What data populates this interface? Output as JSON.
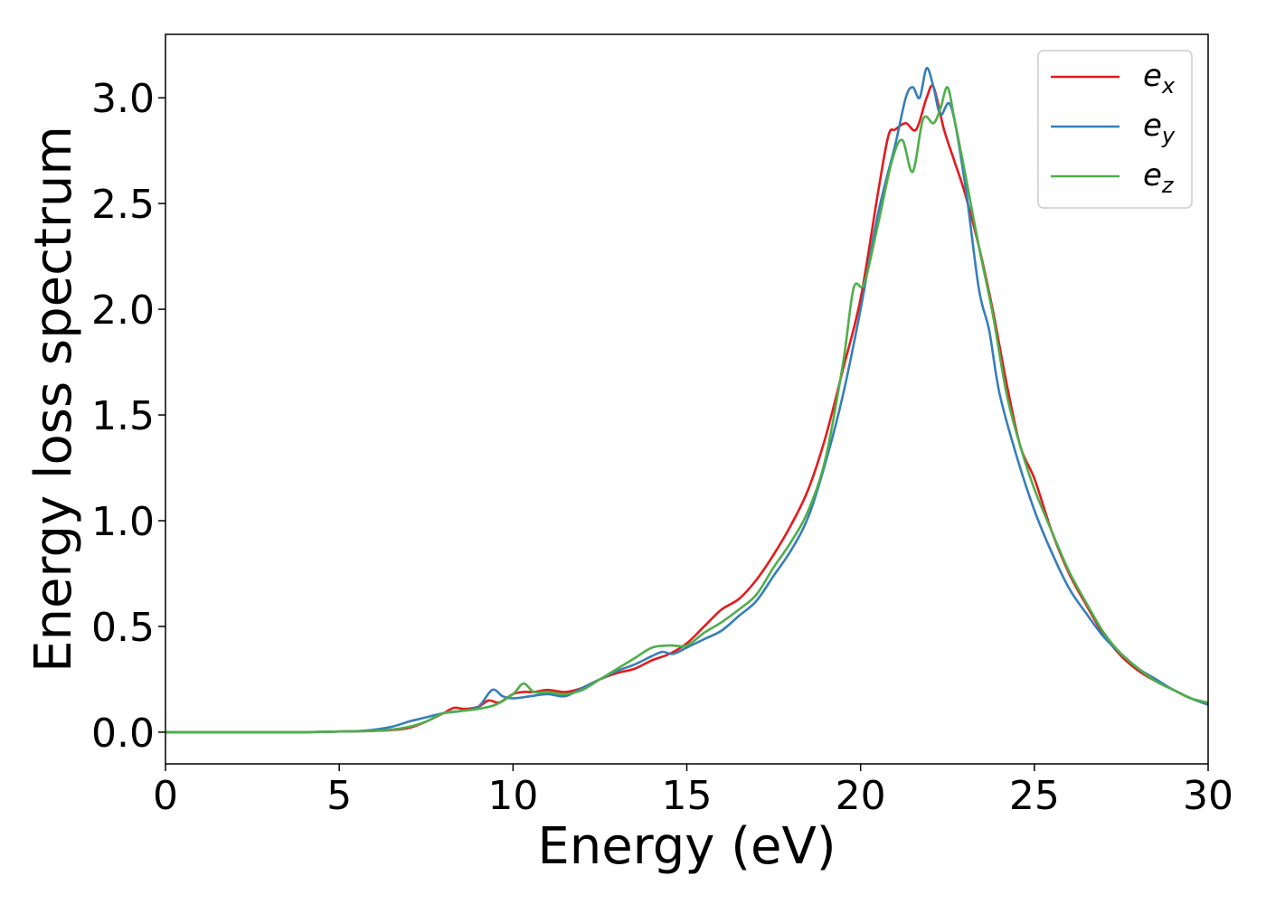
{
  "chart_data": {
    "type": "line",
    "title": "",
    "xlabel": "Energy (eV)",
    "ylabel": "Energy loss spectrum",
    "xlim": [
      0,
      30
    ],
    "ylim": [
      -0.15,
      3.3
    ],
    "xticks": [
      0,
      5,
      10,
      15,
      20,
      25,
      30
    ],
    "xtick_labels": [
      "0",
      "5",
      "10",
      "15",
      "20",
      "25",
      "30"
    ],
    "yticks": [
      0.0,
      0.5,
      1.0,
      1.5,
      2.0,
      2.5,
      3.0
    ],
    "ytick_labels": [
      "0.0",
      "0.5",
      "1.0",
      "1.5",
      "2.0",
      "2.5",
      "3.0"
    ],
    "grid": false,
    "legend_position": "top-right",
    "series": [
      {
        "name": "e_x",
        "legend_base": "e",
        "legend_sub": "x",
        "color": "#e41a1c",
        "x": [
          0,
          2,
          4,
          5,
          5.8,
          6.5,
          7,
          7.5,
          8,
          8.3,
          8.6,
          9,
          9.3,
          9.6,
          10,
          10.3,
          10.6,
          11,
          11.5,
          12,
          12.5,
          13,
          13.5,
          14,
          14.5,
          15,
          15.5,
          16,
          16.5,
          17,
          17.5,
          18,
          18.5,
          19,
          19.5,
          20,
          20.5,
          20.8,
          21,
          21.3,
          21.6,
          21.9,
          22.1,
          22.4,
          22.7,
          23,
          23.4,
          23.8,
          24.2,
          24.6,
          25,
          25.5,
          26,
          26.5,
          27,
          27.5,
          28,
          28.5,
          29,
          29.5,
          30
        ],
        "y": [
          0.0,
          0.0,
          0.0,
          0.003,
          0.005,
          0.01,
          0.02,
          0.05,
          0.09,
          0.115,
          0.11,
          0.12,
          0.15,
          0.14,
          0.18,
          0.19,
          0.19,
          0.2,
          0.19,
          0.21,
          0.25,
          0.28,
          0.3,
          0.34,
          0.37,
          0.42,
          0.5,
          0.58,
          0.63,
          0.72,
          0.84,
          0.98,
          1.15,
          1.4,
          1.72,
          2.05,
          2.55,
          2.82,
          2.85,
          2.88,
          2.85,
          3.0,
          3.05,
          2.85,
          2.7,
          2.55,
          2.3,
          2.0,
          1.65,
          1.35,
          1.2,
          0.95,
          0.75,
          0.6,
          0.46,
          0.36,
          0.29,
          0.24,
          0.2,
          0.16,
          0.13
        ]
      },
      {
        "name": "e_y",
        "legend_base": "e",
        "legend_sub": "y",
        "color": "#377eb8",
        "x": [
          0,
          2,
          4,
          5,
          5.8,
          6.5,
          7,
          7.5,
          8,
          8.5,
          9,
          9.4,
          9.7,
          10,
          10.5,
          11,
          11.5,
          12,
          12.5,
          13,
          13.5,
          14,
          14.3,
          14.6,
          15,
          15.5,
          16,
          16.5,
          17,
          17.5,
          18,
          18.5,
          19,
          19.5,
          20,
          20.5,
          21,
          21.3,
          21.5,
          21.7,
          21.9,
          22.1,
          22.3,
          22.6,
          23,
          23.4,
          23.7,
          24,
          24.5,
          25,
          25.5,
          26,
          26.5,
          27,
          27.5,
          28,
          28.5,
          29,
          29.5,
          30
        ],
        "y": [
          0.0,
          0.0,
          0.0,
          0.003,
          0.008,
          0.025,
          0.05,
          0.07,
          0.09,
          0.1,
          0.12,
          0.2,
          0.17,
          0.16,
          0.17,
          0.18,
          0.17,
          0.21,
          0.25,
          0.29,
          0.32,
          0.36,
          0.38,
          0.37,
          0.4,
          0.44,
          0.48,
          0.55,
          0.62,
          0.74,
          0.86,
          1.02,
          1.28,
          1.6,
          2.0,
          2.45,
          2.78,
          3.0,
          3.05,
          3.0,
          3.14,
          3.05,
          2.92,
          2.96,
          2.6,
          2.1,
          1.9,
          1.6,
          1.3,
          1.05,
          0.85,
          0.68,
          0.56,
          0.45,
          0.37,
          0.3,
          0.25,
          0.2,
          0.16,
          0.13
        ]
      },
      {
        "name": "e_z",
        "legend_base": "e",
        "legend_sub": "z",
        "color": "#4daf4a",
        "x": [
          0,
          2,
          4,
          5,
          5.8,
          6.5,
          7,
          7.5,
          8,
          8.5,
          9,
          9.5,
          10,
          10.3,
          10.6,
          11,
          11.5,
          12,
          12.5,
          13,
          13.5,
          14,
          14.5,
          15,
          15.5,
          16,
          16.5,
          17,
          17.5,
          18,
          18.5,
          19,
          19.5,
          19.8,
          20.1,
          20.5,
          20.9,
          21.2,
          21.5,
          21.8,
          22.1,
          22.3,
          22.5,
          22.7,
          23,
          23.4,
          23.8,
          24.2,
          24.6,
          25,
          25.5,
          26,
          26.5,
          27,
          27.5,
          28,
          28.5,
          29,
          29.5,
          30
        ],
        "y": [
          0.0,
          0.0,
          0.0,
          0.003,
          0.005,
          0.012,
          0.025,
          0.05,
          0.09,
          0.1,
          0.11,
          0.13,
          0.18,
          0.23,
          0.19,
          0.19,
          0.18,
          0.2,
          0.25,
          0.3,
          0.35,
          0.4,
          0.41,
          0.41,
          0.47,
          0.52,
          0.58,
          0.65,
          0.78,
          0.9,
          1.05,
          1.3,
          1.75,
          2.1,
          2.12,
          2.4,
          2.7,
          2.8,
          2.65,
          2.9,
          2.88,
          2.95,
          3.05,
          2.9,
          2.65,
          2.3,
          1.98,
          1.6,
          1.35,
          1.15,
          0.95,
          0.76,
          0.61,
          0.47,
          0.37,
          0.3,
          0.24,
          0.2,
          0.16,
          0.14
        ]
      }
    ]
  }
}
